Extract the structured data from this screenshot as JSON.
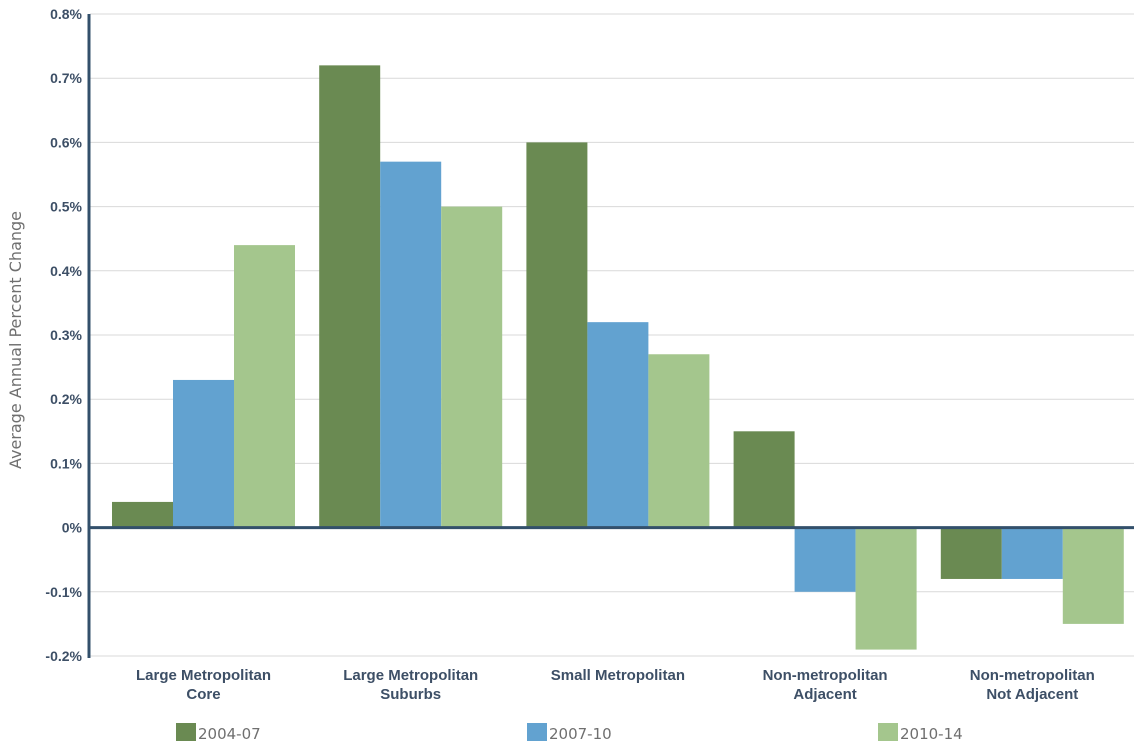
{
  "chart_data": {
    "type": "bar",
    "ylabel": "Average Annual Percent Change",
    "ylim": [
      -0.2,
      0.8
    ],
    "yticks": [
      "-0.2%",
      "-0.1%",
      "0%",
      "0.1%",
      "0.2%",
      "0.3%",
      "0.4%",
      "0.5%",
      "0.6%",
      "0.7%",
      "0.8%"
    ],
    "grid": true,
    "legend_position": "bottom",
    "categories": [
      [
        "Large Metropolitan",
        "Core"
      ],
      [
        "Large Metropolitan",
        "Suburbs"
      ],
      [
        "Small Metropolitan"
      ],
      [
        "Non-metropolitan",
        "Adjacent"
      ],
      [
        "Non-metropolitan",
        "Not Adjacent"
      ]
    ],
    "series": [
      {
        "name": "2004-07",
        "color": "#6a8a52",
        "values": [
          0.04,
          0.72,
          0.6,
          0.15,
          -0.08
        ]
      },
      {
        "name": "2007-10",
        "color": "#62a2d0",
        "values": [
          0.23,
          0.57,
          0.32,
          -0.1,
          -0.08
        ]
      },
      {
        "name": "2010-14",
        "color": "#a4c68d",
        "values": [
          0.44,
          0.5,
          0.27,
          -0.19,
          -0.15
        ]
      }
    ]
  }
}
